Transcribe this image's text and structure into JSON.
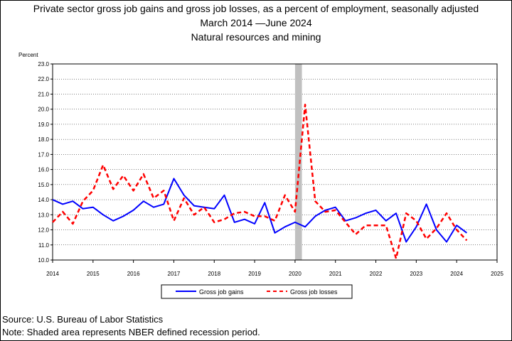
{
  "title": {
    "line1": "Private sector gross job gains and gross job losses, as a percent of employment, seasonally adjusted",
    "line2": "March 2014 —June 2024",
    "line3": "Natural resources and mining"
  },
  "footer": {
    "source": "Source: U.S. Bureau of Labor Statistics",
    "note": "Note: Shaded area represents NBER defined recession period."
  },
  "chart_data": {
    "type": "line",
    "ylabel": "Percent",
    "xlim": [
      2014,
      2025
    ],
    "ylim": [
      10.0,
      23.0
    ],
    "x_ticks": [
      "2014",
      "2015",
      "2016",
      "2017",
      "2018",
      "2019",
      "2020",
      "2021",
      "2022",
      "2023",
      "2024",
      "2025"
    ],
    "y_ticks": [
      "10.0",
      "11.0",
      "12.0",
      "13.0",
      "14.0",
      "15.0",
      "16.0",
      "17.0",
      "18.0",
      "19.0",
      "20.0",
      "21.0",
      "22.0",
      "23.0"
    ],
    "grid": "horizontal",
    "legend_position": "bottom",
    "recession": {
      "start": 2020.0,
      "end": 2020.17,
      "color": "#c0c0c0"
    },
    "x": [
      2014.0,
      2014.25,
      2014.5,
      2014.75,
      2015.0,
      2015.25,
      2015.5,
      2015.75,
      2016.0,
      2016.25,
      2016.5,
      2016.75,
      2017.0,
      2017.25,
      2017.5,
      2017.75,
      2018.0,
      2018.25,
      2018.5,
      2018.75,
      2019.0,
      2019.25,
      2019.5,
      2019.75,
      2020.0,
      2020.25,
      2020.5,
      2020.75,
      2021.0,
      2021.25,
      2021.5,
      2021.75,
      2022.0,
      2022.25,
      2022.5,
      2022.75,
      2023.0,
      2023.25,
      2023.5,
      2023.75,
      2024.0,
      2024.25
    ],
    "series": [
      {
        "name": "Gross job gains",
        "color": "#0000ff",
        "style": "solid",
        "values": [
          14.0,
          13.7,
          13.9,
          13.4,
          13.5,
          13.0,
          12.6,
          12.9,
          13.3,
          13.9,
          13.5,
          13.7,
          15.4,
          14.3,
          13.6,
          13.5,
          13.4,
          14.3,
          12.5,
          12.7,
          12.4,
          13.8,
          11.8,
          12.2,
          12.5,
          12.2,
          12.9,
          13.3,
          13.5,
          12.6,
          12.8,
          13.1,
          13.3,
          12.6,
          13.1,
          11.2,
          12.2,
          13.7,
          12.0,
          11.2,
          12.3,
          11.8
        ]
      },
      {
        "name": "Gross job losses",
        "color": "#ff0000",
        "style": "dashed",
        "values": [
          12.5,
          13.2,
          12.4,
          13.9,
          14.6,
          16.3,
          14.7,
          15.6,
          14.6,
          15.7,
          14.1,
          14.6,
          12.6,
          14.1,
          13.0,
          13.5,
          12.5,
          12.7,
          13.1,
          13.2,
          12.9,
          12.9,
          12.6,
          14.3,
          13.2,
          20.3,
          13.9,
          13.2,
          13.3,
          12.5,
          11.7,
          12.3,
          12.3,
          12.3,
          10.1,
          13.1,
          12.6,
          11.4,
          12.1,
          13.1,
          12.0,
          11.3
        ]
      }
    ]
  }
}
